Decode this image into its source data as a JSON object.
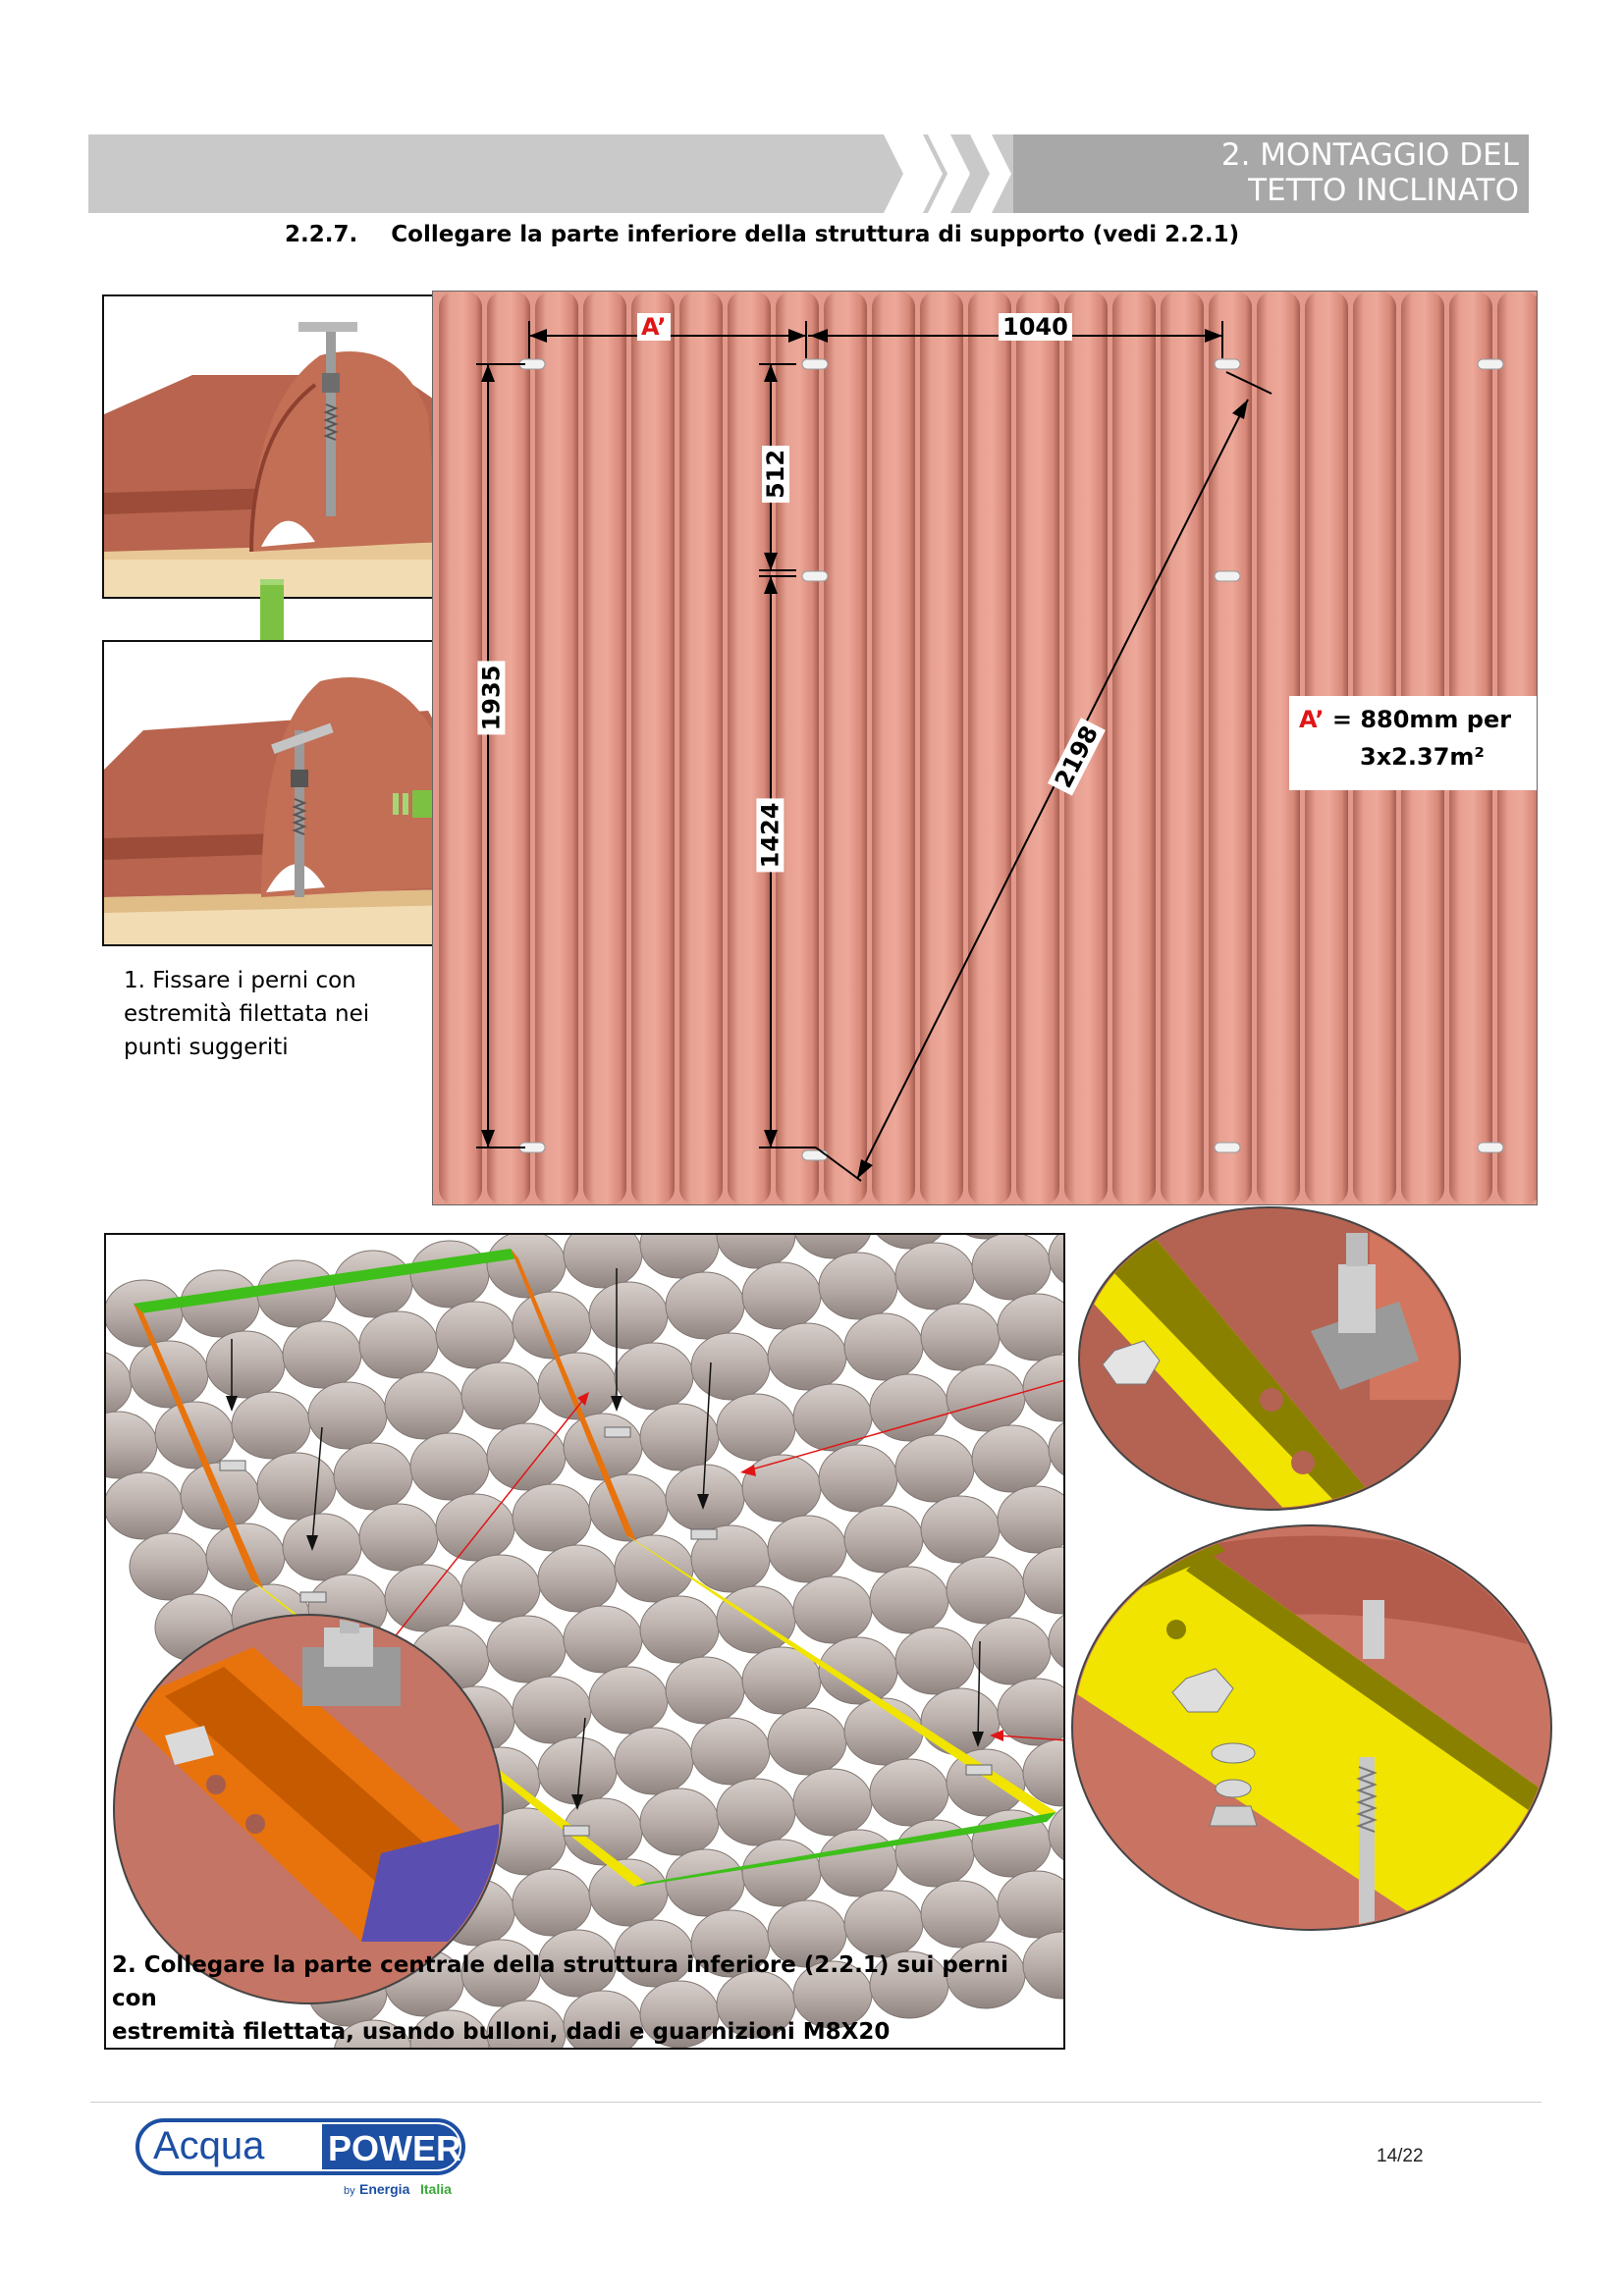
{
  "header": {
    "title_line1": "2. MONTAGGIO DEL",
    "title_line2": "TETTO INCLINATO"
  },
  "section": {
    "number": "2.2.7.",
    "title": "Collegare la parte inferiore della struttura di supporto (vedi 2.2.1)"
  },
  "step1": {
    "caption_line1": "1. Fissare i perni con",
    "caption_line2": "estremità filettata nei",
    "caption_line3": "punti suggeriti"
  },
  "diagram": {
    "label_a": "A’",
    "dim_top": "1040",
    "dim_left": "1935",
    "dim_upper": "512",
    "dim_lower": "1424",
    "dim_diag": "2198",
    "note_key": "A’",
    "note_eq": " =  880mm per",
    "note_line2": "3x2.37m²"
  },
  "step2": {
    "caption_line1": "2. Collegare la parte centrale della struttura inferiore (2.2.1) sui perni con",
    "caption_line2": "estremità filettata, usando bulloni, dadi e guarnizioni M8X20"
  },
  "footer": {
    "logo_word1": "Acqua",
    "logo_word2": "POWER",
    "logo_by": "by",
    "logo_brand1": "Energia",
    "logo_brand2": "Italia",
    "page": "14/22"
  },
  "colors": {
    "roof_tile": "#e39a8c",
    "frame_green": "#3fbf1a",
    "frame_orange": "#e8720c",
    "frame_yellow": "#f0e400",
    "arrow_green": "#7dc142",
    "accent_red": "#e01616",
    "logo_blue": "#1d4fa3"
  }
}
